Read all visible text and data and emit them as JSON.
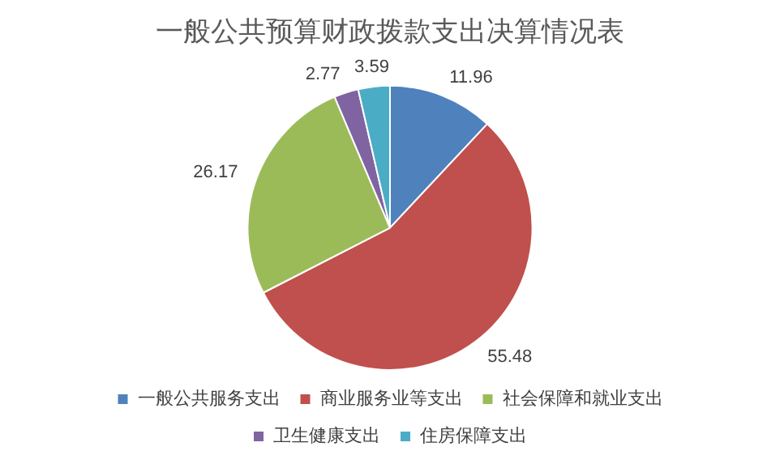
{
  "chart_data": {
    "type": "pie",
    "title": "一般公共预算财政拨款支出决算情况表",
    "categories": [
      "一般公共服务支出",
      "商业服务业等支出",
      "社会保障和就业支出",
      "卫生健康支出",
      "住房保障支出"
    ],
    "values": [
      11.96,
      55.48,
      26.17,
      2.77,
      3.59
    ],
    "colors": [
      "#4f81bd",
      "#c0504d",
      "#9bbb59",
      "#8064a2",
      "#4bacc6"
    ],
    "data_labels": true,
    "legend": "bottom"
  }
}
